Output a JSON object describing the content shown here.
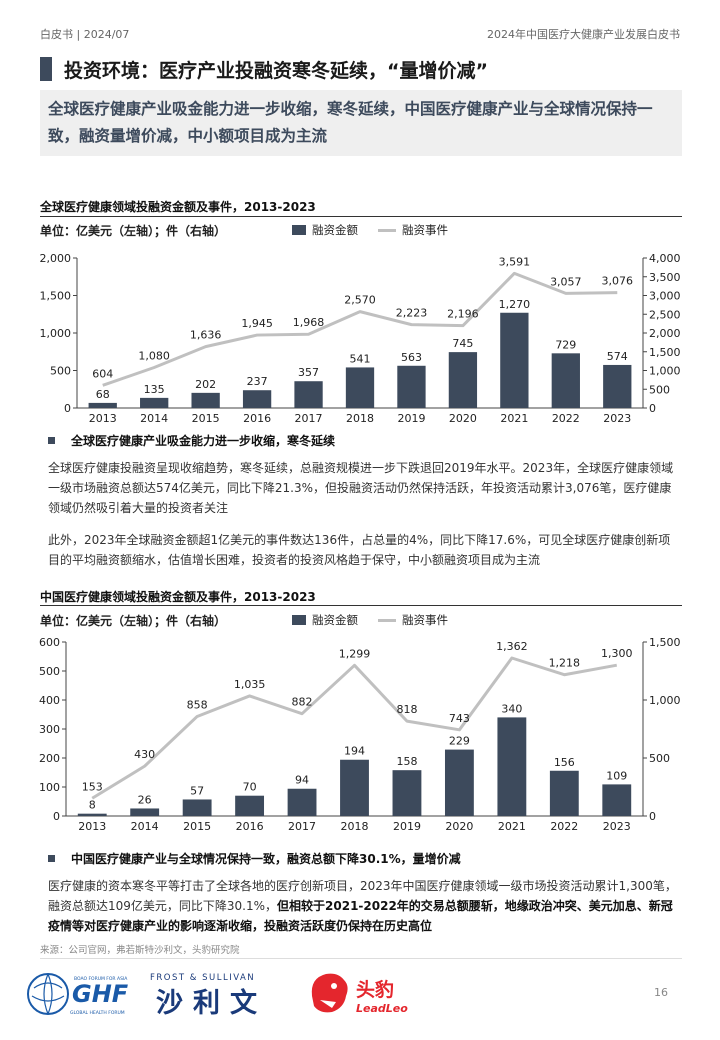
{
  "header": {
    "left": "白皮书 | 2024/07",
    "right": "2024年中国医疗大健康产业发展白皮书"
  },
  "title": "投资环境：医疗产业投融资寒冬延续，“量增价减”",
  "subtitle": "全球医疗健康产业吸金能力进一步收缩，寒冬延续，中国医疗健康产业与全球情况保持一致，融资量增价减，中小额项目成为主流",
  "chart_data": [
    {
      "type": "bar",
      "title": "全球医疗健康领域投融资金额及事件，2013-2023",
      "unit_label": "单位：亿美元（左轴）；件（右轴）",
      "categories": [
        "2013",
        "2014",
        "2015",
        "2016",
        "2017",
        "2018",
        "2019",
        "2020",
        "2021",
        "2022",
        "2023"
      ],
      "series": [
        {
          "name": "融资金额",
          "kind": "bar",
          "axis": "left",
          "color": "#3d4a5c",
          "values": [
            68,
            135,
            202,
            237,
            357,
            541,
            563,
            745,
            1270,
            729,
            574
          ]
        },
        {
          "name": "融资事件",
          "kind": "line",
          "axis": "right",
          "color": "#c0c0c0",
          "values": [
            604,
            1080,
            1636,
            1945,
            1968,
            2570,
            2223,
            2196,
            3591,
            3057,
            3076
          ]
        }
      ],
      "ylim_left": [
        0,
        2000
      ],
      "ylim_right": [
        0,
        4000
      ],
      "left_ticks": [
        0,
        500,
        1000,
        1500,
        2000
      ],
      "right_ticks": [
        0,
        500,
        1000,
        1500,
        2000,
        2500,
        3000,
        3500,
        4000
      ],
      "grid": false,
      "legend": "top-right"
    },
    {
      "type": "bar",
      "title": "中国医疗健康领域投融资金额及事件，2013-2023",
      "unit_label": "单位：亿美元（左轴）；件（右轴）",
      "categories": [
        "2013",
        "2014",
        "2015",
        "2016",
        "2017",
        "2018",
        "2019",
        "2020",
        "2021",
        "2022",
        "2023"
      ],
      "series": [
        {
          "name": "融资金额",
          "kind": "bar",
          "axis": "left",
          "color": "#3d4a5c",
          "values": [
            8,
            26,
            57,
            70,
            94,
            194,
            158,
            229,
            340,
            156,
            109
          ]
        },
        {
          "name": "融资事件",
          "kind": "line",
          "axis": "right",
          "color": "#c0c0c0",
          "values": [
            153,
            430,
            858,
            1035,
            882,
            1299,
            818,
            743,
            1362,
            1218,
            1300
          ]
        }
      ],
      "ylim_left": [
        0,
        600
      ],
      "ylim_right": [
        0,
        1500
      ],
      "left_ticks": [
        0,
        100,
        200,
        300,
        400,
        500,
        600
      ],
      "right_ticks": [
        0,
        500,
        1000,
        1500
      ],
      "grid": false,
      "legend": "top-right"
    }
  ],
  "section1": {
    "heading": "全球医疗健康产业吸金能力进一步收缩，寒冬延续",
    "para1": "全球医疗健康投融资呈现收缩趋势，寒冬延续，总融资规模进一步下跌退回2019年水平。2023年，全球医疗健康领域一级市场融资总额达574亿美元，同比下降21.3%，但投融资活动仍然保持活跃，年投资活动累计3,076笔，医疗健康领域仍然吸引着大量的投资者关注",
    "para2": "此外，2023年全球融资金额超1亿美元的事件数达136件，占总量的4%，同比下降17.6%，可见全球医疗健康创新项目的平均融资额缩水，估值增长困难，投资者的投资风格趋于保守，中小额融资项目成为主流"
  },
  "section2": {
    "heading": "中国医疗健康产业与全球情况保持一致，融资总额下降30.1%，量增价减",
    "para_normal": "医疗健康的资本寒冬平等打击了全球各地的医疗创新项目，2023年中国医疗健康领域一级市场投资活动累计1,300笔，融资总额达109亿美元，同比下降30.1%，",
    "para_bold": "但相较于2021-2022年的交易总额腰斩，地缘政治冲突、美元加息、新冠疫情等对医疗健康产业的影响逐渐收缩，投融资活跃度仍保持在历史高位"
  },
  "source": "来源：公司官网，弗若斯特沙利文，头豹研究院",
  "logos": {
    "ghf_text": "GHF",
    "ghf_small_top": "BOAO FORUM FOR ASIA",
    "ghf_small_bottom": "GLOBAL HEALTH FORUM",
    "fs_top": "FROST & SULLIVAN",
    "fs_cn": "沙利文",
    "ll_cn": "头豹",
    "ll_en": "LeadLeo"
  },
  "page_number": "16"
}
